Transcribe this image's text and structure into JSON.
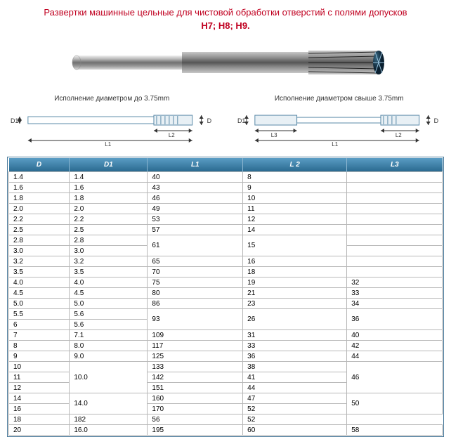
{
  "title": "Развертки машинные цельные для чистовой обработки отверстий с полями допусков",
  "subtitle": "H7; H8; H9.",
  "diagram_left_caption": "Исполнение диаметром до 3.75mm",
  "diagram_right_caption": "Исполнение диаметром свыше 3.75mm",
  "dim_labels": {
    "D": "D",
    "D1": "D1",
    "L1": "L1",
    "L2": "L2",
    "L3": "L3"
  },
  "table": {
    "header_bg_from": "#5a9cc4",
    "header_bg_to": "#2a6a90",
    "columns": [
      "D",
      "D1",
      "L1",
      "L 2",
      "L3"
    ],
    "col_widths_pct": [
      14,
      18,
      22,
      24,
      22
    ],
    "rows": [
      {
        "D": "1.4",
        "D1": "1.4",
        "L1": "40",
        "L2": "8",
        "L3": ""
      },
      {
        "D": "1.6",
        "D1": "1.6",
        "L1": "43",
        "L2": "9",
        "L3": ""
      },
      {
        "D": "1.8",
        "D1": "1.8",
        "L1": "46",
        "L2": "10",
        "L3": ""
      },
      {
        "D": "2.0",
        "D1": "2.0",
        "L1": "49",
        "L2": "11",
        "L3": ""
      },
      {
        "D": "2.2",
        "D1": "2.2",
        "L1": "53",
        "L2": "12",
        "L3": ""
      },
      {
        "D": "2.5",
        "D1": "2.5",
        "L1": "57",
        "L2": "14",
        "L3": ""
      },
      {
        "D": "2.8",
        "D1": "2.8",
        "L1_span": 2,
        "L1": "61",
        "L2_span": 2,
        "L2": "15",
        "L3": ""
      },
      {
        "D": "3.0",
        "D1": "3.0",
        "L3": ""
      },
      {
        "D": "3.2",
        "D1": "3.2",
        "L1": "65",
        "L2": "16",
        "L3": ""
      },
      {
        "D": "3.5",
        "D1": "3.5",
        "L1": "70",
        "L2": "18",
        "L3": ""
      },
      {
        "D": "4.0",
        "D1": "4.0",
        "L1": "75",
        "L2": "19",
        "L3": "32"
      },
      {
        "D": "4.5",
        "D1": "4.5",
        "L1": "80",
        "L2": "21",
        "L3": "33"
      },
      {
        "D": "5.0",
        "D1": "5.0",
        "L1": "86",
        "L2": "23",
        "L3": "34"
      },
      {
        "D": "5.5",
        "D1": "5.6",
        "L1_span": 2,
        "L1": "93",
        "L2_span": 2,
        "L2": "26",
        "L3_span": 2,
        "L3": "36"
      },
      {
        "D": "6",
        "D1": "5.6"
      },
      {
        "D": "7",
        "D1": "7.1",
        "L1": "109",
        "L2": "31",
        "L3": "40"
      },
      {
        "D": "8",
        "D1": "8.0",
        "L1": "117",
        "L2": "33",
        "L3": "42"
      },
      {
        "D": "9",
        "D1": "9.0",
        "L1": "125",
        "L2": "36",
        "L3": "44"
      },
      {
        "D": "10",
        "D1_span": 3,
        "D1": "10.0",
        "L1": "133",
        "L2": "38",
        "L3_span": 3,
        "L3": "46"
      },
      {
        "D": "11",
        "L1": "142",
        "L2": "41"
      },
      {
        "D": "12",
        "L1": "151",
        "L2": "44"
      },
      {
        "D": "14",
        "D1_span": 2,
        "D1": "14.0",
        "L1": "160",
        "L2": "47",
        "L3_span": 2,
        "L3": "50"
      },
      {
        "D": "16",
        "L1": "170",
        "L2": "52"
      },
      {
        "D": "18",
        "L1": "182",
        "L2": "56",
        "L3": "52"
      },
      {
        "D": "20",
        "D1": "16.0",
        "L1": "195",
        "L2": "60",
        "L3": "58"
      }
    ]
  }
}
